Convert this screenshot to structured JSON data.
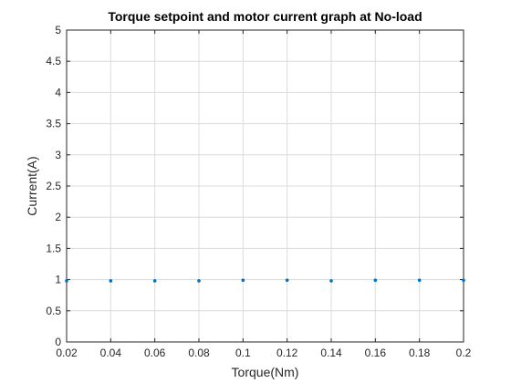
{
  "chart_data": {
    "type": "scatter",
    "title": "Torque setpoint and motor current graph at No-load",
    "xlabel": "Torque(Nm)",
    "ylabel": "Current(A)",
    "xlim": [
      0.02,
      0.2
    ],
    "ylim": [
      0,
      5
    ],
    "xticks": [
      "0.02",
      "0.04",
      "0.06",
      "0.08",
      "0.1",
      "0.12",
      "0.14",
      "0.16",
      "0.18",
      "0.2"
    ],
    "yticks": [
      "0",
      "0.5",
      "1",
      "1.5",
      "2",
      "2.5",
      "3",
      "3.5",
      "4",
      "4.5",
      "5"
    ],
    "grid": true,
    "legend": false,
    "series": [
      {
        "color": "#0072BD",
        "marker": "dot",
        "x": [
          0.02,
          0.04,
          0.06,
          0.08,
          0.1,
          0.12,
          0.14,
          0.16,
          0.18,
          0.2
        ],
        "y": [
          0.98,
          0.98,
          0.98,
          0.98,
          0.99,
          0.99,
          0.98,
          0.99,
          0.99,
          0.99
        ]
      }
    ]
  }
}
